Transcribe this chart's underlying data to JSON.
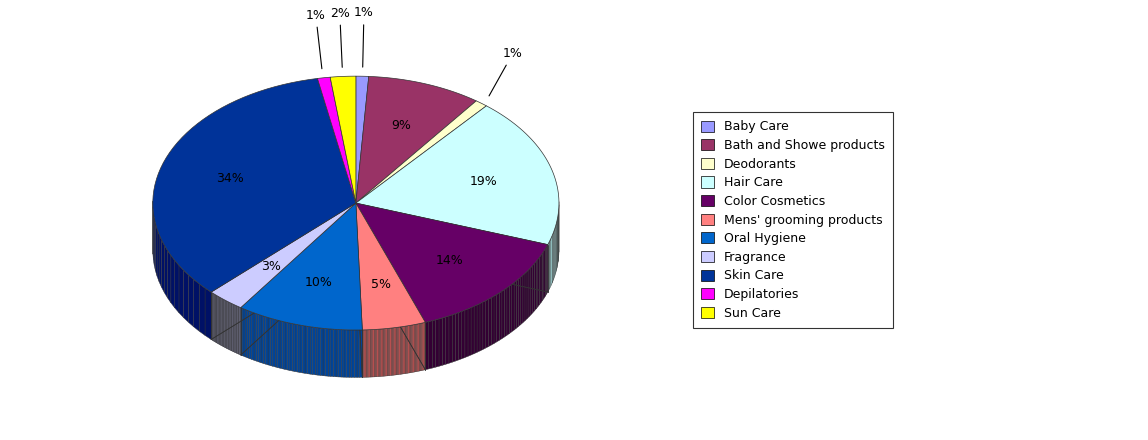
{
  "labels": [
    "Baby Care",
    "Bath and Showe products",
    "Deodorants",
    "Hair Care",
    "Color Cosmetics",
    "Mens' grooming products",
    "Oral Hygiene",
    "Fragrance",
    "Skin Care",
    "Depilatories",
    "Sun Care"
  ],
  "values": [
    1,
    9,
    1,
    19,
    14,
    5,
    10,
    3,
    34,
    1,
    2
  ],
  "colors": [
    "#9999FF",
    "#993366",
    "#FFFFCC",
    "#CCFFFF",
    "#660066",
    "#FF8080",
    "#0066CC",
    "#CCCCFF",
    "#003399",
    "#FF00FF",
    "#FFFF00"
  ],
  "dark_colors": [
    "#6666CC",
    "#662244",
    "#CCCC99",
    "#99CCCC",
    "#330033",
    "#CC5555",
    "#004499",
    "#9999CC",
    "#001166",
    "#CC00CC",
    "#CCCC00"
  ],
  "pct_labels": [
    "1%",
    "9%",
    "1%",
    "19%",
    "14%",
    "5%",
    "10%",
    "3%",
    "34%",
    "1%",
    "2%"
  ],
  "legend_labels": [
    "Baby Care",
    "Bath and Showe products",
    "Deodorants",
    "Hair Care",
    "Color Cosmetics",
    "Mens' grooming products",
    "Oral Hygiene",
    "Fragrance",
    "Skin Care",
    "Depilatories",
    "Sun Care"
  ],
  "background_color": "#FFFFFF",
  "startangle": 90,
  "label_fontsize": 9,
  "legend_fontsize": 9
}
